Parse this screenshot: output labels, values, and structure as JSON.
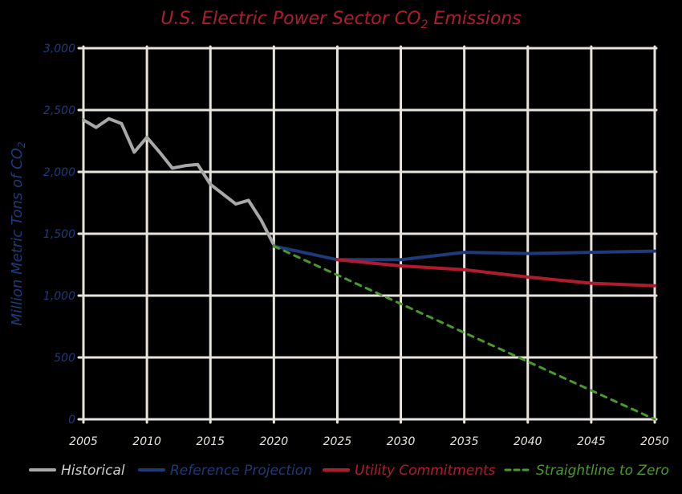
{
  "chart_data": {
    "type": "line",
    "title_main": "U.S. Electric Power Sector CO",
    "title_sub": "2",
    "title_tail": " Emissions",
    "ylabel_main": "Million Metric Tons of CO",
    "ylabel_sub": "2",
    "xlabel": "",
    "xlim": [
      2005,
      2050
    ],
    "ylim": [
      0,
      3000
    ],
    "x_ticks": [
      2005,
      2010,
      2015,
      2020,
      2025,
      2030,
      2035,
      2040,
      2045,
      2050
    ],
    "x_tick_labels": [
      "2005",
      "2010",
      "2015",
      "2020",
      "2025",
      "2030",
      "2035",
      "2040",
      "2045",
      "2050"
    ],
    "y_ticks": [
      0,
      500,
      1000,
      1500,
      2000,
      2500,
      3000
    ],
    "y_tick_labels": [
      "0",
      "500",
      "1,000",
      "1,500",
      "2,000",
      "2,500",
      "3,000"
    ],
    "grid": true,
    "legend_position": "bottom",
    "series": [
      {
        "name": "Historical",
        "color": "#a8a8a8",
        "dash": false,
        "points": [
          [
            2005,
            2420
          ],
          [
            2006,
            2360
          ],
          [
            2007,
            2430
          ],
          [
            2008,
            2390
          ],
          [
            2009,
            2160
          ],
          [
            2010,
            2280
          ],
          [
            2011,
            2160
          ],
          [
            2012,
            2030
          ],
          [
            2013,
            2050
          ],
          [
            2014,
            2060
          ],
          [
            2015,
            1900
          ],
          [
            2016,
            1820
          ],
          [
            2017,
            1740
          ],
          [
            2018,
            1770
          ],
          [
            2019,
            1610
          ],
          [
            2020,
            1410
          ]
        ]
      },
      {
        "name": "Reference Projection",
        "color": "#1f3a78",
        "dash": false,
        "points": [
          [
            2020,
            1400
          ],
          [
            2025,
            1290
          ],
          [
            2030,
            1290
          ],
          [
            2035,
            1350
          ],
          [
            2040,
            1340
          ],
          [
            2045,
            1350
          ],
          [
            2050,
            1360
          ]
        ]
      },
      {
        "name": "Utility Commitments",
        "color": "#b01c2e",
        "dash": false,
        "points": [
          [
            2025,
            1290
          ],
          [
            2030,
            1240
          ],
          [
            2035,
            1210
          ],
          [
            2040,
            1150
          ],
          [
            2045,
            1100
          ],
          [
            2050,
            1080
          ]
        ]
      },
      {
        "name": "Straightline to Zero",
        "color": "#4a9a2a",
        "dash": true,
        "points": [
          [
            2020,
            1400
          ],
          [
            2050,
            0
          ]
        ]
      }
    ]
  },
  "colors": {
    "title": "#b01c2e",
    "axis_text": "#1f3a78",
    "grid": "#e8e4dc",
    "background": "#000000"
  }
}
